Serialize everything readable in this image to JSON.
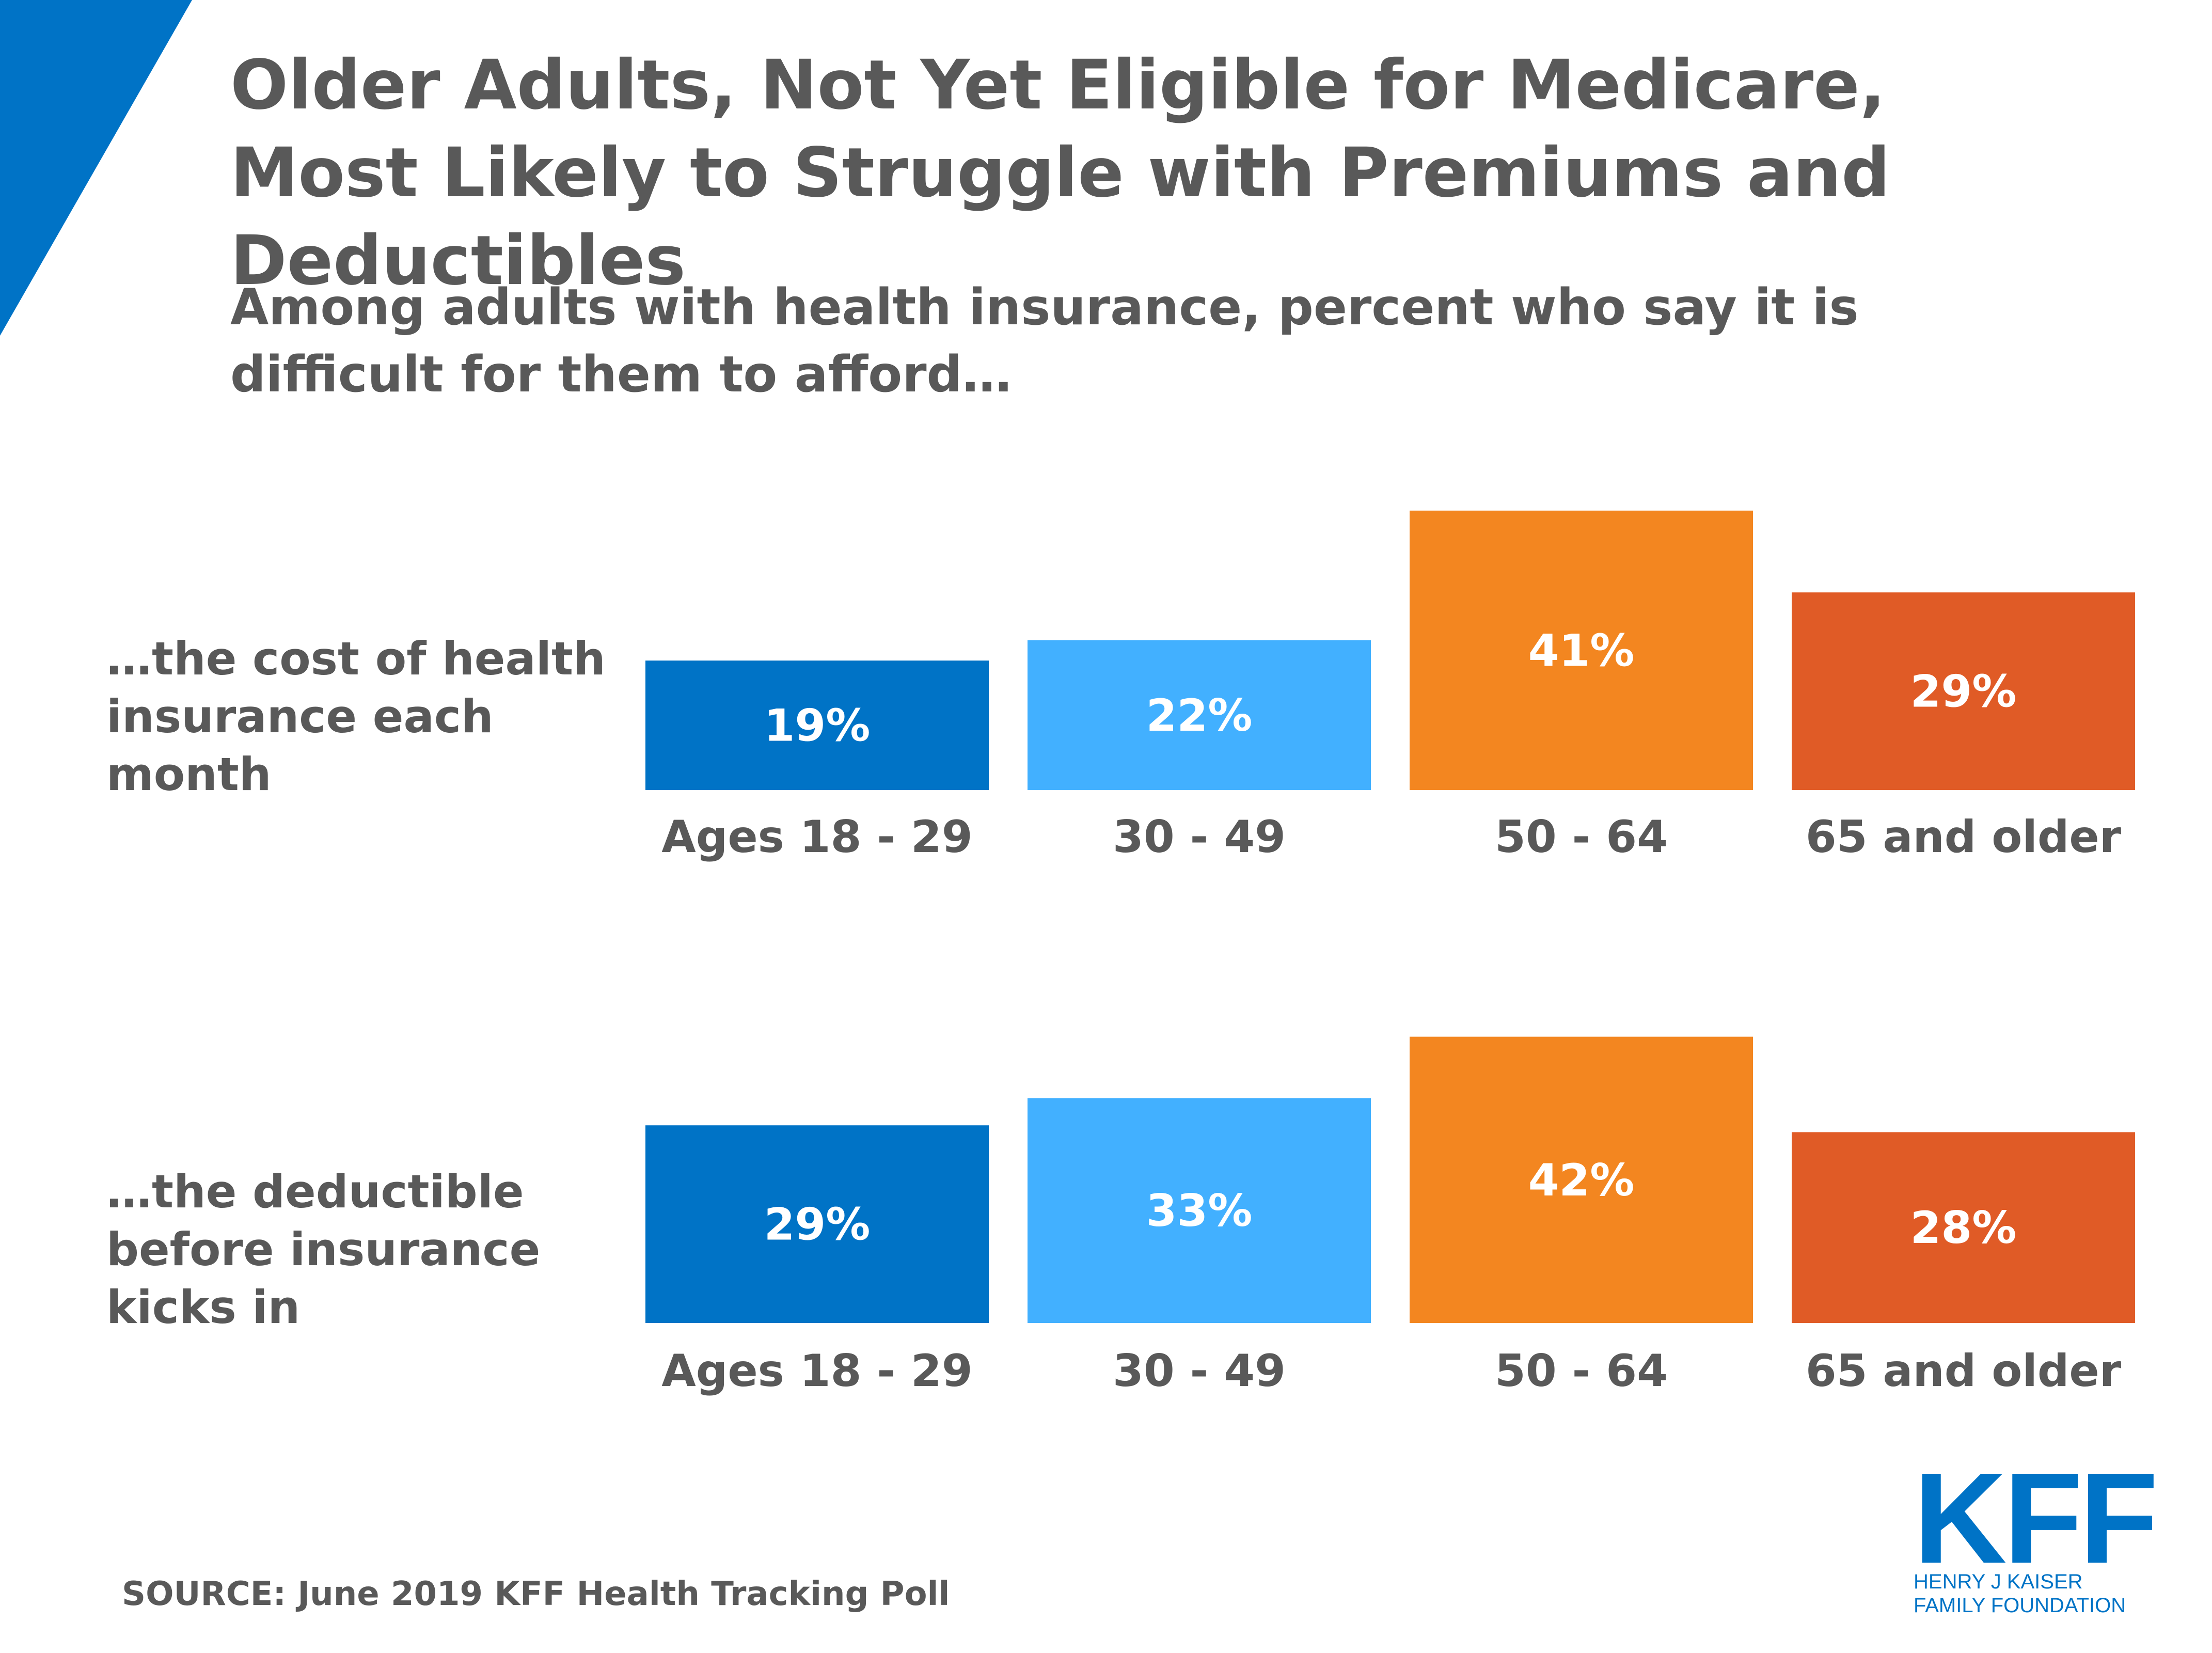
{
  "colors": {
    "accent": "#0073c6",
    "series": [
      "#0073c6",
      "#42b0ff",
      "#f38620",
      "#e05b26"
    ],
    "text": "#595959"
  },
  "header": {
    "title": "Older Adults, Not Yet Eligible for Medicare, Most Likely to Struggle with Premiums and Deductibles",
    "subtitle": "Among adults with health insurance, percent who say it is difficult for them to afford…"
  },
  "chart_data": [
    {
      "type": "bar",
      "row_label": "…the cost of health insurance each month",
      "categories": [
        "Ages 18 - 29",
        "30 - 49",
        "50 - 64",
        "65 and older"
      ],
      "values": [
        19,
        22,
        41,
        29
      ],
      "value_labels": [
        "19%",
        "22%",
        "41%",
        "29%"
      ],
      "grid": false
    },
    {
      "type": "bar",
      "row_label": "…the deductible before insurance kicks in",
      "categories": [
        "Ages 18 - 29",
        "30 - 49",
        "50 - 64",
        "65 and older"
      ],
      "values": [
        29,
        33,
        42,
        28
      ],
      "value_labels": [
        "29%",
        "33%",
        "42%",
        "28%"
      ],
      "grid": false
    }
  ],
  "footer": {
    "source": "SOURCE: June 2019 KFF Health Tracking Poll"
  },
  "logo": {
    "mark": "KFF",
    "line1": "HENRY J KAISER",
    "line2": "FAMILY FOUNDATION"
  }
}
